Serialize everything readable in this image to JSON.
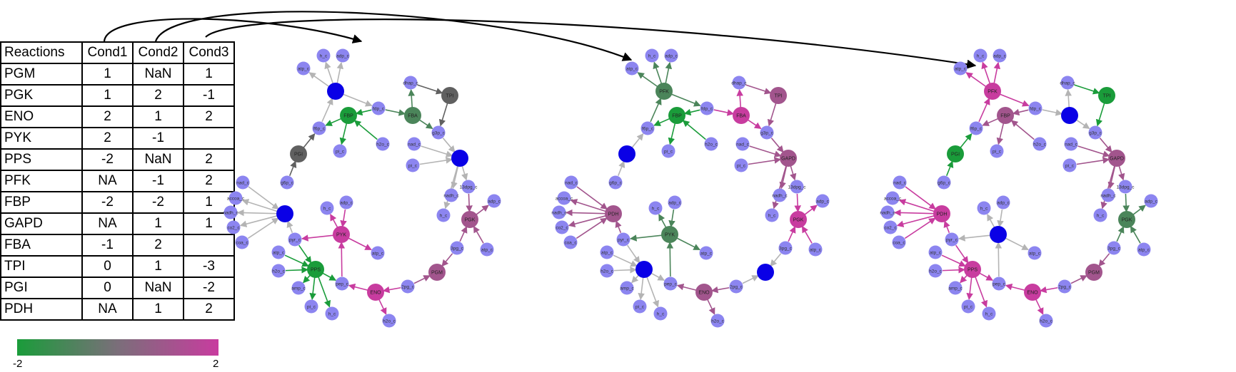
{
  "table": {
    "headers": [
      "Reactions",
      "Cond1",
      "Cond2",
      "Cond3"
    ],
    "rows": [
      [
        "PGM",
        "1",
        "NaN",
        "1"
      ],
      [
        "PGK",
        "1",
        "2",
        "-1"
      ],
      [
        "ENO",
        "2",
        "1",
        "2"
      ],
      [
        "PYK",
        "2",
        "-1",
        ""
      ],
      [
        "PPS",
        "-2",
        "NaN",
        "2"
      ],
      [
        "PFK",
        "NA",
        "-1",
        "2"
      ],
      [
        "FBP",
        "-2",
        "-2",
        "1"
      ],
      [
        "GAPD",
        "NA",
        "1",
        "1"
      ],
      [
        "FBA",
        "-1",
        "2",
        ""
      ],
      [
        "TPI",
        "0",
        "1",
        "-3"
      ],
      [
        "PGI",
        "0",
        "NaN",
        "-2"
      ],
      [
        "PDH",
        "NA",
        "1",
        "2"
      ]
    ]
  },
  "colorbar": {
    "min_label": "-2",
    "max_label": "2",
    "color_low": "#1a9c3a",
    "color_mid": "#7b6e7a",
    "color_high": "#c83c9f"
  },
  "colors": {
    "metabolite": "#8c85f0",
    "unmeasured_reaction": "#0a00e6",
    "na_edge": "#b4b4b4",
    "zero_reaction": "#606060"
  },
  "metabolites": [
    "h_c",
    "adp_c",
    "atp_c",
    "f6p_c",
    "fdp_c",
    "pi_c",
    "h2o_c",
    "dhap_c",
    "g3p_c",
    "nad_c",
    "13dpg_c",
    "nadh_c",
    "g6p_c",
    "accoa_c",
    "co2_c",
    "coa_c",
    "pyr_c",
    "amp_c",
    "pep_c",
    "2pg_c",
    "3pg_c"
  ]
}
